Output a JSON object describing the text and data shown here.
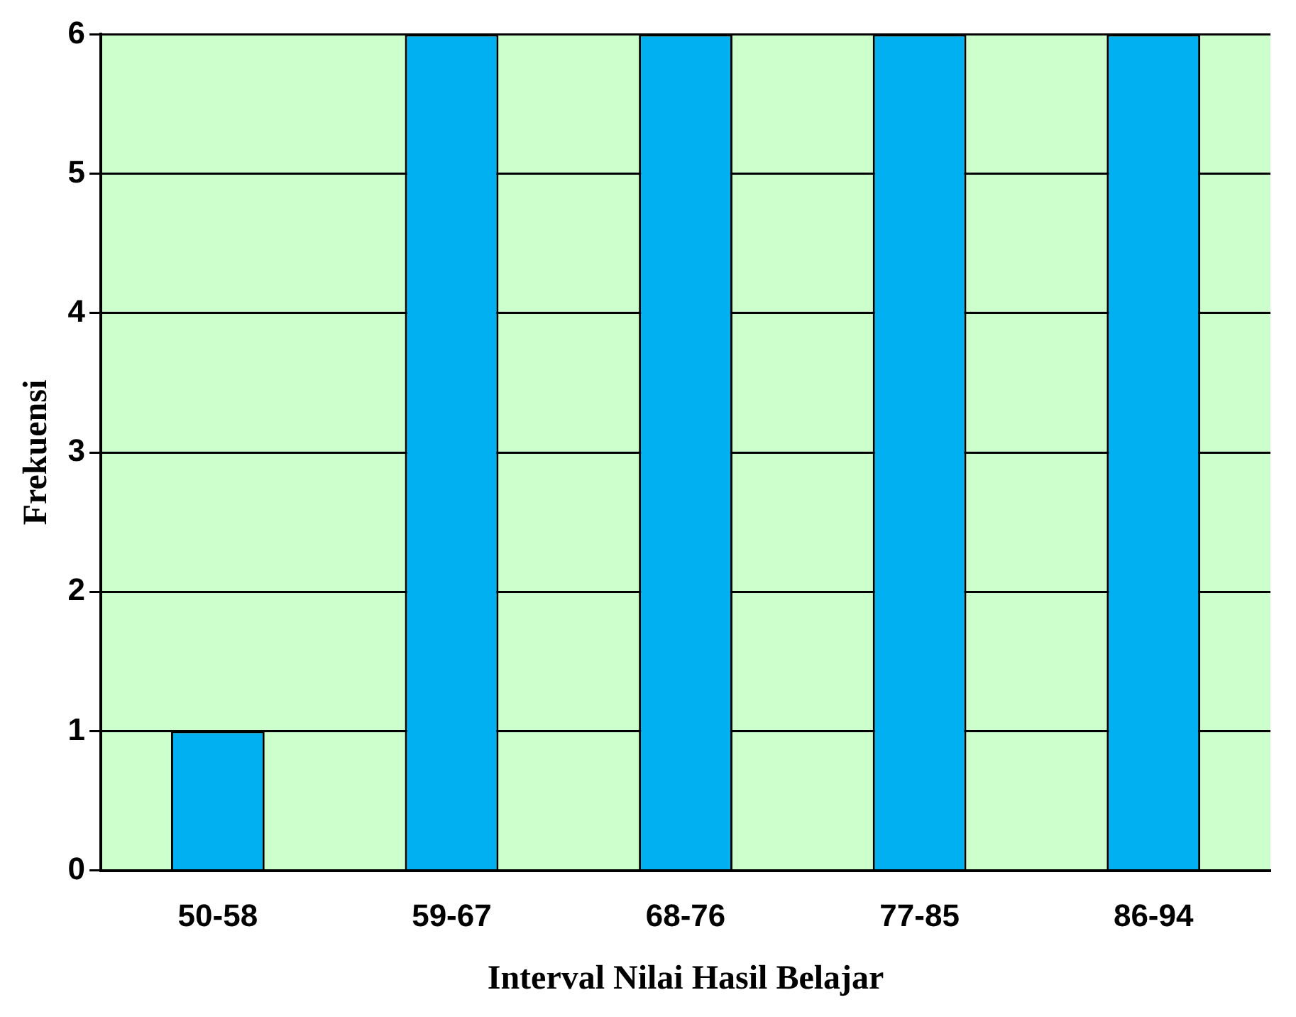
{
  "chart_data": {
    "type": "bar",
    "xlabel": "Interval Nilai Hasil Belajar",
    "ylabel": "Frekuensi",
    "categories": [
      "50-58",
      "59-67",
      "68-76",
      "77-85",
      "86-94"
    ],
    "values": [
      1,
      6,
      6,
      6,
      6
    ],
    "color": "#00b0f0",
    "ylim": [
      0,
      6
    ],
    "yticks": [
      0,
      1,
      2,
      3,
      4,
      5,
      6
    ],
    "grid": "y",
    "legend": false
  }
}
